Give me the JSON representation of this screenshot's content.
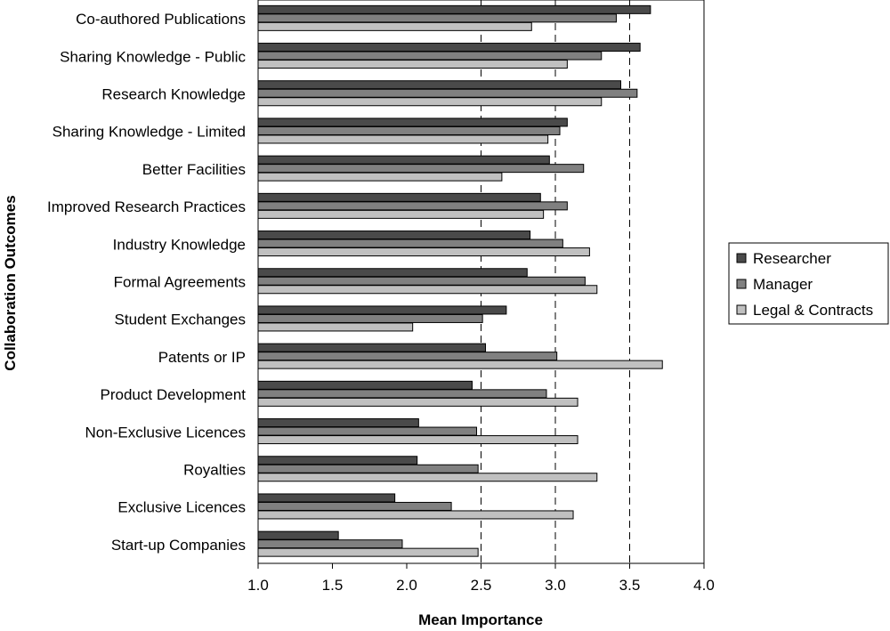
{
  "chart_data": {
    "type": "bar",
    "orientation": "horizontal",
    "title": "",
    "xlabel": "Mean Importance",
    "ylabel": "Collaboration Outcomes",
    "xlim": [
      1.0,
      4.0
    ],
    "xticks": [
      "1.0",
      "1.5",
      "2.0",
      "2.5",
      "3.0",
      "3.5",
      "4.0"
    ],
    "xtick_values": [
      1.0,
      1.5,
      2.0,
      2.5,
      3.0,
      3.5,
      4.0
    ],
    "gridlines_dashed_at": [
      2.5,
      3.0,
      3.5
    ],
    "legend_position": "right",
    "categories": [
      "Co-authored Publications",
      "Sharing Knowledge - Public",
      "Research Knowledge",
      "Sharing Knowledge - Limited",
      "Better Facilities",
      "Improved Research Practices",
      "Industry Knowledge",
      "Formal Agreements",
      "Student Exchanges",
      "Patents or IP",
      "Product Development",
      "Non-Exclusive Licences",
      "Royalties",
      "Exclusive Licences",
      "Start-up Companies"
    ],
    "series": [
      {
        "name": "Researcher",
        "color": "#4a4a4a",
        "values": [
          3.64,
          3.57,
          3.44,
          3.08,
          2.96,
          2.9,
          2.83,
          2.81,
          2.67,
          2.53,
          2.44,
          2.08,
          2.07,
          1.92,
          1.54
        ]
      },
      {
        "name": "Manager",
        "color": "#808080",
        "values": [
          3.41,
          3.31,
          3.55,
          3.03,
          3.19,
          3.08,
          3.05,
          3.2,
          2.51,
          3.01,
          2.94,
          2.47,
          2.48,
          2.3,
          1.97
        ]
      },
      {
        "name": "Legal & Contracts",
        "color": "#c0c0c0",
        "values": [
          2.84,
          3.08,
          3.31,
          2.95,
          2.64,
          2.92,
          3.23,
          3.28,
          2.04,
          3.72,
          3.15,
          3.15,
          3.28,
          3.12,
          2.48
        ]
      }
    ]
  }
}
